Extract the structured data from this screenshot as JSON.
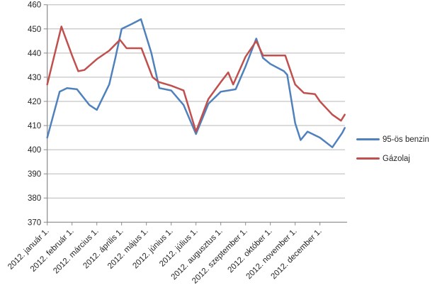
{
  "chart_data": {
    "type": "line",
    "title": "",
    "xlabel": "",
    "ylabel": "",
    "x_unit": "months since 2012-01-01 (0 = 2012. január 1., 1 = 2012. február 1., ...)",
    "categories": [
      "2012. január 1.",
      "2012. február 1.",
      "2012. március 1.",
      "2012. április 1.",
      "2012. május 1.",
      "2012. június 1.",
      "2012. július 1.",
      "2012. augusztus 1.",
      "2012. szeptember 1.",
      "2012. október 1.",
      "2012. november 1.",
      "2012. december 1."
    ],
    "y_ticks": [
      460,
      450,
      440,
      430,
      420,
      410,
      400,
      390,
      380,
      370
    ],
    "ylim": [
      370,
      460
    ],
    "xlim": [
      0,
      12.02
    ],
    "grid": "horizontal",
    "legend_position": "right",
    "series": [
      {
        "name": "95-ös benzin",
        "color": "#4F81BD",
        "points": [
          [
            0,
            405
          ],
          [
            0.5,
            424
          ],
          [
            0.8,
            425.5
          ],
          [
            1.2,
            425
          ],
          [
            1.7,
            418.5
          ],
          [
            2,
            416.5
          ],
          [
            2.5,
            427
          ],
          [
            2.75,
            438
          ],
          [
            3,
            450
          ],
          [
            3.4,
            452
          ],
          [
            3.78,
            454
          ],
          [
            4.2,
            440
          ],
          [
            4.52,
            425.5
          ],
          [
            5,
            424.5
          ],
          [
            5.5,
            418.5
          ],
          [
            6,
            406.5
          ],
          [
            6.5,
            419
          ],
          [
            7,
            424
          ],
          [
            7.3,
            424.5
          ],
          [
            7.6,
            425
          ],
          [
            8,
            434.5
          ],
          [
            8.43,
            446
          ],
          [
            8.7,
            438
          ],
          [
            9,
            435.5
          ],
          [
            9.55,
            432.5
          ],
          [
            9.68,
            431
          ],
          [
            10,
            411
          ],
          [
            10.22,
            404
          ],
          [
            10.5,
            407.5
          ],
          [
            11,
            405
          ],
          [
            11.5,
            401
          ],
          [
            11.9,
            407
          ],
          [
            12,
            409
          ]
        ]
      },
      {
        "name": "Gázolaj",
        "color": "#C0504D",
        "points": [
          [
            0,
            427
          ],
          [
            0.57,
            451
          ],
          [
            1,
            439
          ],
          [
            1.25,
            432.5
          ],
          [
            1.5,
            433
          ],
          [
            2,
            437.5
          ],
          [
            2.5,
            441
          ],
          [
            2.93,
            445.5
          ],
          [
            3.2,
            442
          ],
          [
            3.8,
            442
          ],
          [
            4.25,
            430
          ],
          [
            4.5,
            428
          ],
          [
            5,
            426.5
          ],
          [
            5.5,
            424.5
          ],
          [
            6,
            407.5
          ],
          [
            6.5,
            421
          ],
          [
            7,
            428
          ],
          [
            7.3,
            432
          ],
          [
            7.5,
            427
          ],
          [
            8,
            438.5
          ],
          [
            8.43,
            445
          ],
          [
            8.7,
            439
          ],
          [
            9,
            439
          ],
          [
            9.6,
            439
          ],
          [
            10,
            427
          ],
          [
            10.35,
            423.5
          ],
          [
            10.8,
            423
          ],
          [
            11,
            420
          ],
          [
            11.5,
            414.5
          ],
          [
            11.85,
            412
          ],
          [
            12,
            414.5
          ]
        ]
      }
    ]
  }
}
